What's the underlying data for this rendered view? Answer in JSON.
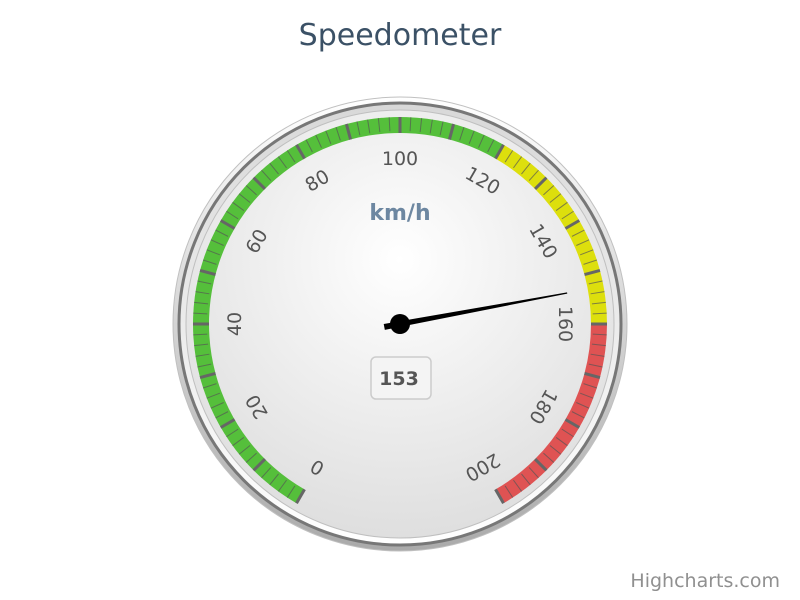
{
  "chart_data": {
    "type": "gauge",
    "title": "Speedometer",
    "unit": "km/h",
    "value": 153,
    "min": 0,
    "max": 200,
    "start_angle_deg": -150,
    "end_angle_deg": 150,
    "tick_interval": 20,
    "minor_tick_interval": 2,
    "tick_labels": [
      "0",
      "20",
      "40",
      "60",
      "80",
      "100",
      "120",
      "140",
      "160",
      "180",
      "200"
    ],
    "bands": [
      {
        "from": 0,
        "to": 120,
        "color": "#55bf3b"
      },
      {
        "from": 120,
        "to": 160,
        "color": "#dddf0d"
      },
      {
        "from": 160,
        "to": 200,
        "color": "#df5353"
      }
    ]
  },
  "credits": "Highcharts.com",
  "colors": {
    "title": "#3b5166",
    "needle": "#000000",
    "tick": "#666666"
  }
}
